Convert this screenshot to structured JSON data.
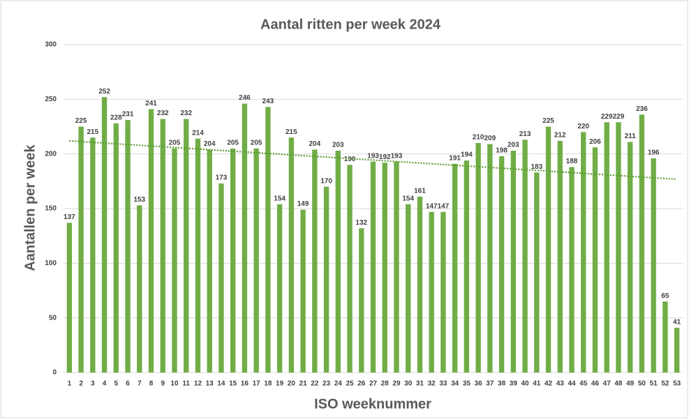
{
  "chart_data": {
    "type": "bar",
    "title": "Aantal ritten per week 2024",
    "x_label": "ISO weeknummer",
    "y_label": "Aantallen per week",
    "categories": [
      "1",
      "2",
      "3",
      "4",
      "5",
      "6",
      "7",
      "8",
      "9",
      "10",
      "11",
      "12",
      "13",
      "14",
      "15",
      "16",
      "17",
      "18",
      "19",
      "20",
      "21",
      "22",
      "23",
      "24",
      "25",
      "26",
      "27",
      "28",
      "29",
      "30",
      "31",
      "32",
      "33",
      "34",
      "35",
      "36",
      "37",
      "38",
      "39",
      "40",
      "41",
      "42",
      "43",
      "44",
      "45",
      "46",
      "47",
      "48",
      "49",
      "50",
      "51",
      "52",
      "53"
    ],
    "values": [
      137,
      225,
      215,
      252,
      228,
      231,
      153,
      241,
      232,
      205,
      232,
      214,
      204,
      173,
      205,
      246,
      205,
      243,
      154,
      215,
      149,
      204,
      170,
      203,
      190,
      132,
      193,
      192,
      193,
      154,
      161,
      147,
      147,
      191,
      194,
      210,
      209,
      198,
      203,
      213,
      183,
      225,
      212,
      188,
      220,
      206,
      229,
      229,
      211,
      236,
      196,
      65,
      41
    ],
    "color": "#70ad47",
    "trendline": "linear",
    "trendline_color": "#5a9a32",
    "ylim": [
      0,
      300
    ],
    "yticks": [
      0,
      50,
      100,
      150,
      200,
      250,
      300
    ],
    "grid": true
  }
}
